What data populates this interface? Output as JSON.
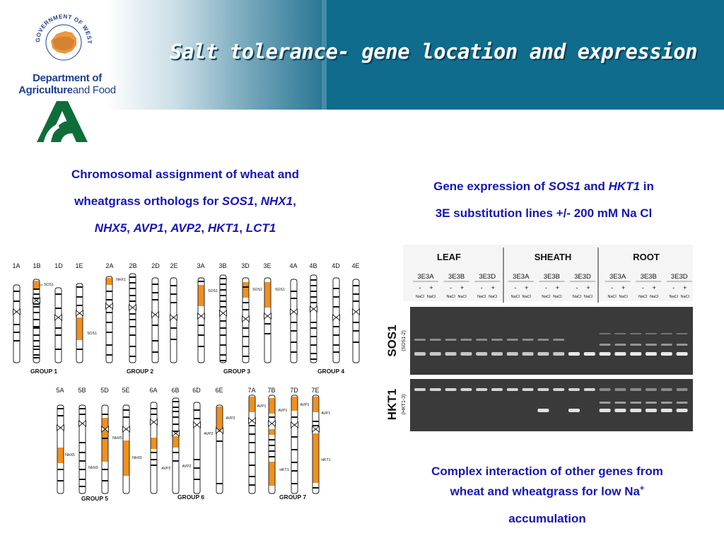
{
  "header": {
    "title": "Salt tolerance- gene location and expression",
    "colors": {
      "band": "#0f6c8d",
      "title": "#ffffff"
    }
  },
  "logo": {
    "seal_text": "GOVERNMENT OF WESTERN AUSTRALIA",
    "dept_line1": "Department of",
    "dept_line2_bold": "Agriculture",
    "dept_line2_light": "and Food"
  },
  "left_caption": {
    "line1": "Chromosomal assignment of wheat and",
    "line2_a": "wheatgrass orthologs for ",
    "g_sos1": "SOS1",
    "sep1": ", ",
    "g_nhx1": "NHX1",
    "sep2": ",",
    "g_nhx5": "NHX5",
    "sep3": ",  ",
    "g_avp1": "AVP1",
    "sep4": ", ",
    "g_avp2": "AVP2",
    "sep5": ", ",
    "g_hkt1": "HKT1",
    "sep6": ", ",
    "g_lct1": "LCT1"
  },
  "right_caption": {
    "a": "Gene expression of ",
    "g_sos1": "SOS1",
    "b": " and ",
    "g_hkt1": "HKT1",
    "c": " in",
    "line2": "3E substitution lines +/- 200 mM Na Cl"
  },
  "bottom_caption": {
    "line1": "Complex interaction of other genes from",
    "line2": "wheat and wheatgrass for low Na",
    "sup": "+",
    "line3": "accumulation"
  },
  "chromosome_figure": {
    "row1_labels": [
      "1A",
      "1B",
      "1D",
      "1E",
      "2A",
      "2B",
      "2D",
      "2E",
      "3A",
      "3B",
      "3D",
      "3E",
      "4A",
      "4B",
      "4D",
      "4E"
    ],
    "row2_labels": [
      "5A",
      "5B",
      "5D",
      "5E",
      "6A",
      "6B",
      "6D",
      "6E",
      "7A",
      "7B",
      "7D",
      "7E"
    ],
    "groups": [
      "GROUP 1",
      "GROUP 2",
      "GROUP 3",
      "GROUP 4",
      "GROUP 5",
      "GROUP 6",
      "GROUP 7"
    ],
    "gene_labels": {
      "sos1_1b": "SOS1",
      "sos1_1e": "SOS1",
      "nhx1_2a": "NHX1",
      "sos1_3a": "SOS1",
      "sos1_3d": "SOS1",
      "sos1_3e": "SOS1",
      "nhx5_5a": "NHX5",
      "nhx5_5b": "NHX5",
      "nhx5_5d": "NHX5",
      "nhx5_5e": "NHX5",
      "avp2_6a": "AVP2",
      "avp2_6b": "AVP2",
      "avp2_6d": "AVP2",
      "avp2_6e": "AVP2",
      "avp1_7a": "AVP1",
      "avp1_7b": "AVP1",
      "avp1_7d": "AVP1",
      "avp1_7e": "AVP1",
      "hkt1_7b": "HKT1",
      "hkt1_7e": "HKT1"
    },
    "colors": {
      "marker": "#f0901e",
      "band": "#111111"
    }
  },
  "gel_figure": {
    "tissues": [
      "LEAF",
      "SHEATH",
      "ROOT"
    ],
    "lines": [
      "3E3A",
      "3E3B",
      "3E3D",
      "3E3A",
      "3E3B",
      "3E3D",
      "3E3A",
      "3E3B",
      "3E3D"
    ],
    "signs": [
      "-",
      "+"
    ],
    "nacl": "NaCl",
    "row_labels": {
      "sos1": "SOS1",
      "sos1_sub": "(SOS1-2)",
      "hkt1": "HKT1",
      "hkt1_sub": "(HKT1-3)"
    }
  }
}
